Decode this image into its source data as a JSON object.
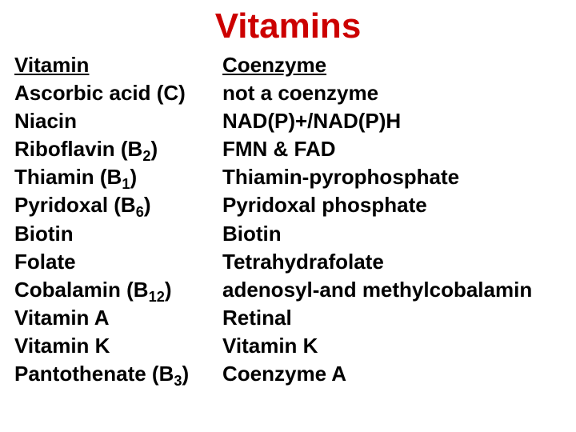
{
  "title": {
    "text": "Vitamins",
    "color": "#cc0000",
    "fontsize": 44
  },
  "body_fontsize": 26,
  "columns": {
    "left": {
      "header": "Vitamin",
      "rows": [
        "Ascorbic acid (C)",
        "Niacin",
        "Riboflavin (B<sub>2</sub>)",
        "Thiamin (B<sub>1</sub>)",
        "Pyridoxal (B<sub>6</sub>)",
        "Biotin",
        "Folate",
        "Cobalamin (B<sub>12</sub>)",
        "Vitamin A",
        "Vitamin K",
        "Pantothenate (B<sub>3</sub>)"
      ]
    },
    "right": {
      "header": "Coenzyme",
      "rows": [
        "not a coenzyme",
        "NAD(P)+/NAD(P)H",
        "FMN & FAD",
        "Thiamin-pyrophosphate",
        "Pyridoxal phosphate",
        "Biotin",
        "Tetrahydrafolate",
        "adenosyl-and methylcobalamin",
        "Retinal",
        "Vitamin K",
        "Coenzyme A"
      ]
    }
  }
}
